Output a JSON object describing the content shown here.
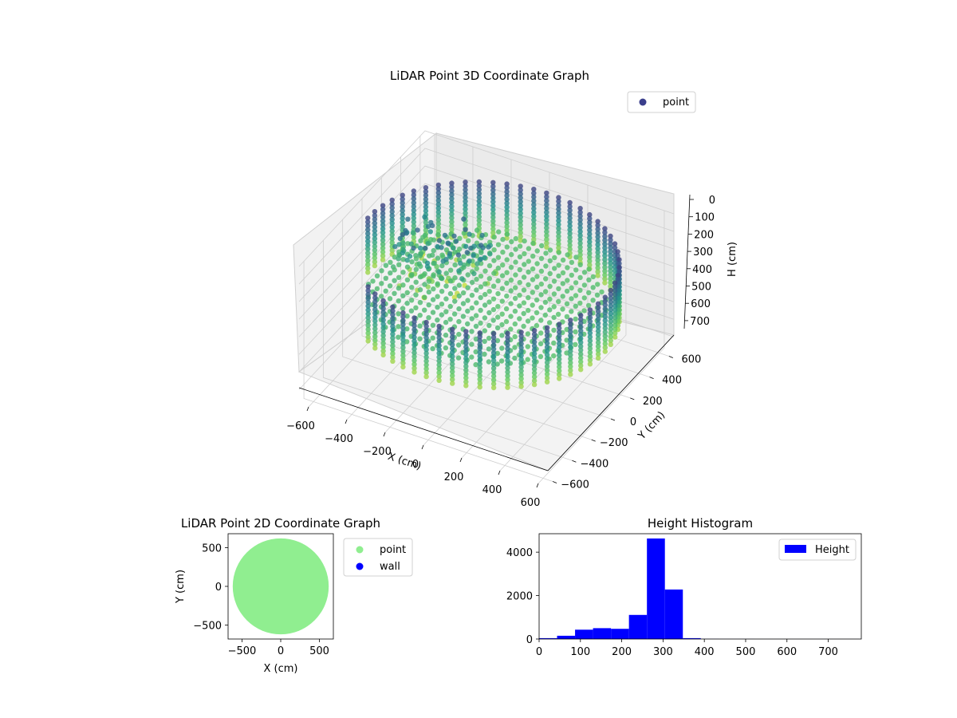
{
  "chart_data": [
    {
      "type": "scatter3d",
      "title": "LiDAR Point 3D Coordinate Graph",
      "xlabel": "X (cm)",
      "ylabel": "Y (cm)",
      "zlabel": "H (cm)",
      "xlim": [
        -650,
        650
      ],
      "ylim": [
        -650,
        650
      ],
      "zlim": [
        0,
        780
      ],
      "z_inverted": true,
      "xticks": [
        -600,
        -400,
        -200,
        0,
        200,
        400,
        600
      ],
      "yticks": [
        -600,
        -400,
        -200,
        0,
        200,
        400,
        600
      ],
      "zticks": [
        0,
        100,
        200,
        300,
        400,
        500,
        600,
        700
      ],
      "legend": [
        "point"
      ],
      "legend_position": "upper right",
      "colormap": "viridis",
      "legend_marker_color": "#3b3f8c",
      "grid": true,
      "shape": {
        "ring_radius": 620,
        "ring_height_range": [
          100,
          420
        ],
        "floor_height": 330,
        "ring_gap_angle_deg": [
          185,
          230
        ],
        "inner_cluster_center": [
          -300,
          150
        ],
        "inner_cluster_height": 300
      }
    },
    {
      "type": "scatter",
      "title": "LiDAR Point 2D Coordinate Graph",
      "xlabel": "X (cm)",
      "ylabel": "Y (cm)",
      "xlim": [
        -680,
        680
      ],
      "ylim": [
        -680,
        680
      ],
      "xticks": [
        -500,
        0,
        500
      ],
      "yticks": [
        -500,
        0,
        500
      ],
      "series": [
        {
          "name": "point",
          "color": "#90ee90",
          "shape": "disc",
          "radius": 620
        },
        {
          "name": "wall",
          "color": "#0000ff"
        }
      ],
      "legend_position": "outside right"
    },
    {
      "type": "bar",
      "title": "Height Histogram",
      "xlim": [
        0,
        780
      ],
      "ylim": [
        0,
        4850
      ],
      "xticks": [
        0,
        100,
        200,
        300,
        400,
        500,
        600,
        700
      ],
      "yticks": [
        0,
        2000,
        4000
      ],
      "bin_width": 43.5,
      "bin_starts": [
        0,
        43.5,
        87,
        130.5,
        174,
        217.5,
        261,
        304.5,
        348,
        391.5,
        435,
        478.5,
        522,
        565.5,
        609,
        652.5,
        696,
        739.5
      ],
      "values": [
        40,
        150,
        430,
        500,
        470,
        1110,
        4630,
        2280,
        40,
        5,
        2,
        2,
        1,
        1,
        1,
        1,
        1,
        1
      ],
      "color": "#0000ff",
      "legend": [
        "Height"
      ],
      "legend_position": "upper right"
    }
  ]
}
